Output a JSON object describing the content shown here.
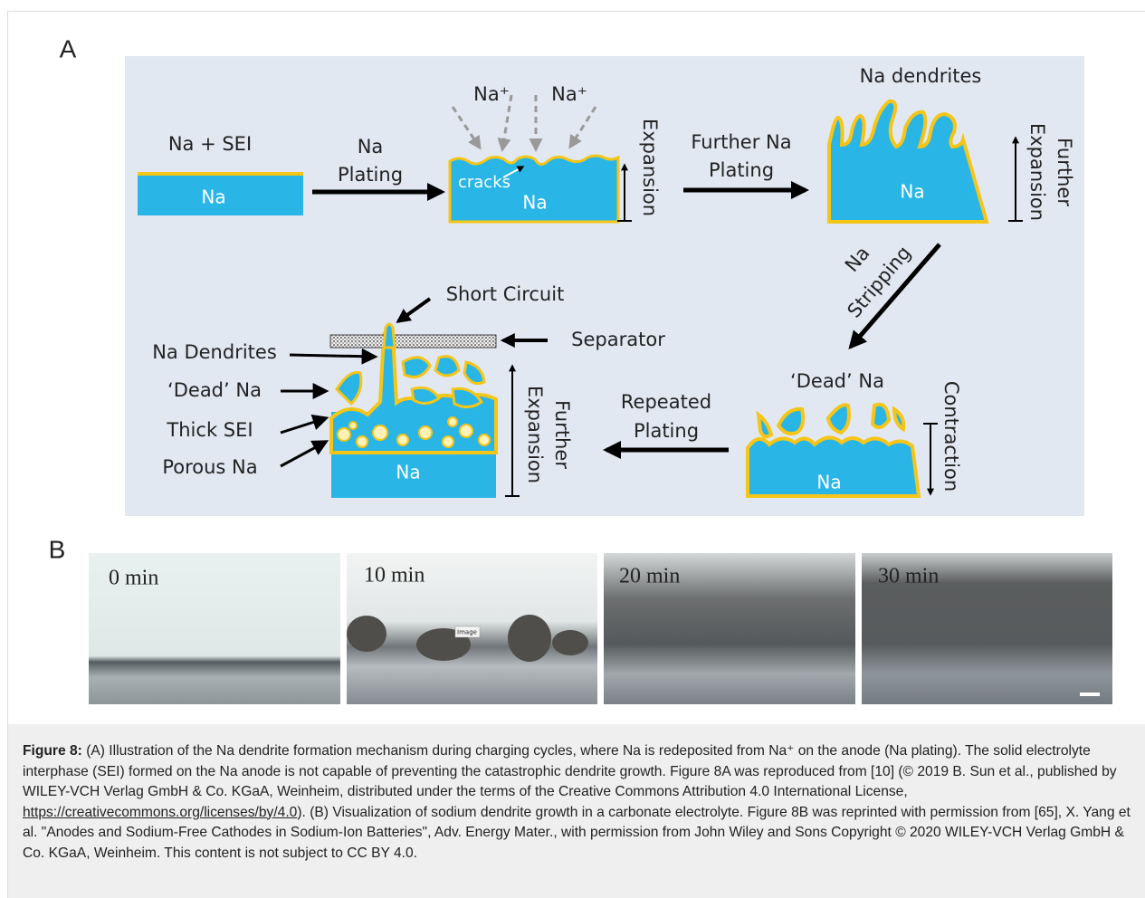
{
  "figure": {
    "panel_a_label": "A",
    "panel_b_label": "B",
    "diagram": {
      "stage1": {
        "label": "Na + SEI",
        "anode": "Na"
      },
      "arrow1": [
        "Na",
        "Plating"
      ],
      "stage2": {
        "ions": [
          "Na⁺",
          "Na⁺"
        ],
        "cracks": "cracks",
        "anode": "Na",
        "side": "Expansion"
      },
      "arrow2": [
        "Further Na",
        "Plating"
      ],
      "stage3": {
        "label": "Na dendrites",
        "anode": "Na",
        "side": [
          "Further",
          "Expansion"
        ]
      },
      "arrow3": [
        "Na",
        "Stripping"
      ],
      "stage4": {
        "label": "‘Dead’ Na",
        "anode": "Na",
        "side": "Contraction"
      },
      "arrow4": [
        "Repeated",
        "Plating"
      ],
      "stage5": {
        "short_circuit": "Short Circuit",
        "separator": "Separator",
        "labels": [
          "Na Dendrites",
          "‘Dead’ Na",
          "Thick SEI",
          "Porous Na"
        ],
        "anode": "Na",
        "side": [
          "Further",
          "Expansion"
        ]
      }
    },
    "photos": [
      "0 min",
      "10 min",
      "20 min",
      "30 min"
    ],
    "image_tag": "Image"
  },
  "caption": {
    "label": "Figure 8:",
    "text_before_link": " (A) Illustration of the Na dendrite formation mechanism during charging cycles, where Na is redeposited from Na⁺ on the anode (Na plating). The solid electrolyte interphase (SEI) formed on the Na anode is not capable of preventing the catastrophic dendrite growth. Figure 8A was reproduced from [10] (© 2019 B. Sun et al., published by WILEY-VCH Verlag GmbH & Co. KGaA, Weinheim, distributed under the terms of the Creative Commons Attribution 4.0 International License, ",
    "link": "https://creativecommons.org/licenses/by/4.0",
    "text_after_link": "). (B) Visualization of sodium dendrite growth in a carbonate electrolyte. Figure 8B was reprinted with permission from [65], X. Yang et al. \"Anodes and Sodium-Free Cathodes in Sodium-Ion Batteries\", Adv. Energy Mater., with permission from John Wiley and Sons Copyright © 2020 WILEY-VCH Verlag GmbH & Co. KGaA, Weinheim. This content is not subject to CC BY 4.0."
  }
}
